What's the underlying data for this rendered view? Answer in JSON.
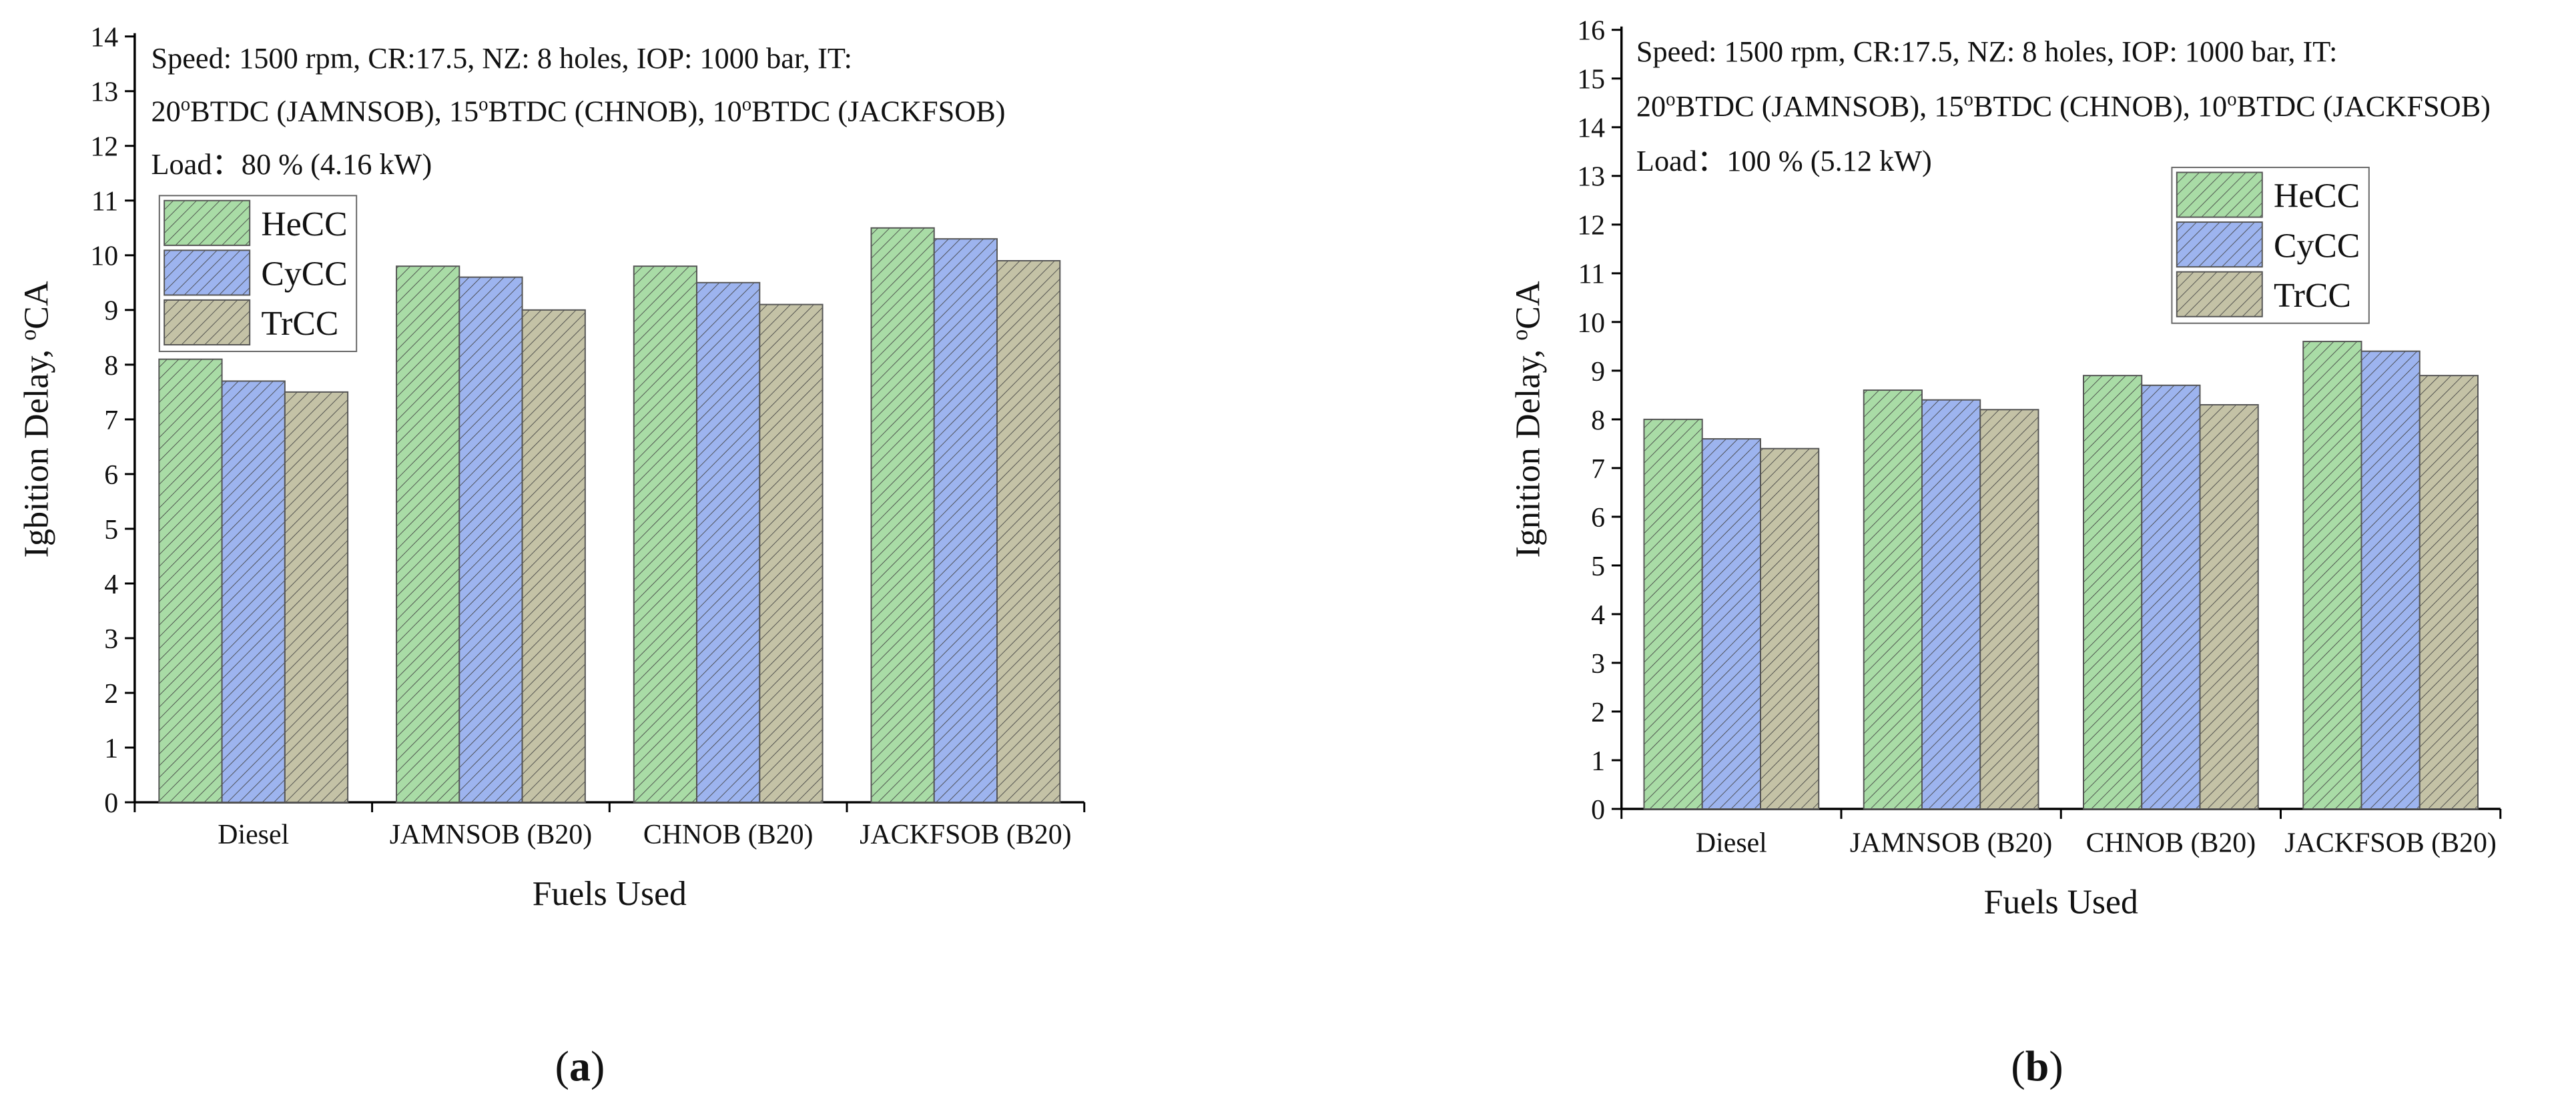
{
  "chart_data": [
    {
      "type": "bar",
      "annotation": [
        [
          "Speed: 1500 rpm, CR:17.5, NZ: 8 holes, IOP: 1000 bar, IT:"
        ],
        [
          "20",
          "o",
          "BTDC (JAMNSOB), 15",
          "o",
          "BTDC (CHNOB), 10",
          "o",
          "BTDC (JACKFSOB)"
        ],
        [
          "Load：80 %  (4.16 kW)"
        ]
      ],
      "xlabel": "Fuels Used",
      "ylabel": [
        "Igbition Delay, ",
        "o",
        "CA"
      ],
      "panel_label": [
        "(",
        "a",
        ")"
      ],
      "categories": [
        "Diesel",
        "JAMNSOB (B20)",
        "CHNOB (B20)",
        "JACKFSOB (B20)"
      ],
      "series": [
        {
          "name": "HeCC",
          "color": "#a9dca6",
          "values": [
            8.1,
            9.8,
            9.8,
            10.5
          ]
        },
        {
          "name": "CyCC",
          "color": "#9db4ef",
          "values": [
            7.7,
            9.6,
            9.5,
            10.3
          ]
        },
        {
          "name": "TrCC",
          "color": "#c4c2a6",
          "values": [
            7.5,
            9.0,
            9.1,
            9.9
          ]
        }
      ],
      "ylim": [
        0,
        14
      ],
      "yticks": [
        0,
        1,
        2,
        3,
        4,
        5,
        6,
        7,
        8,
        9,
        10,
        11,
        12,
        13,
        14
      ],
      "legend": "upper left"
    },
    {
      "type": "bar",
      "annotation": [
        [
          "Speed: 1500 rpm, CR:17.5, NZ: 8 holes, IOP: 1000 bar, IT:"
        ],
        [
          "20",
          "o",
          "BTDC (JAMNSOB), 15",
          "o",
          "BTDC (CHNOB), 10",
          "o",
          "BTDC (JACKFSOB)"
        ],
        [
          "Load：100 %  (5.12 kW)"
        ]
      ],
      "xlabel": "Fuels Used",
      "ylabel": [
        "Ignition Delay, ",
        "o",
        "CA"
      ],
      "panel_label": [
        "(",
        "b",
        ")"
      ],
      "categories": [
        "Diesel",
        "JAMNSOB (B20)",
        "CHNOB (B20)",
        "JACKFSOB (B20)"
      ],
      "series": [
        {
          "name": "HeCC",
          "color": "#a9dca6",
          "values": [
            8.0,
            8.6,
            8.9,
            9.6
          ]
        },
        {
          "name": "CyCC",
          "color": "#9db4ef",
          "values": [
            7.6,
            8.4,
            8.7,
            9.4
          ]
        },
        {
          "name": "TrCC",
          "color": "#c4c2a6",
          "values": [
            7.4,
            8.2,
            8.3,
            8.9
          ]
        }
      ],
      "ylim": [
        0,
        16
      ],
      "yticks": [
        0,
        1,
        2,
        3,
        4,
        5,
        6,
        7,
        8,
        9,
        10,
        11,
        12,
        13,
        14,
        15,
        16
      ],
      "legend": "upper right"
    }
  ]
}
